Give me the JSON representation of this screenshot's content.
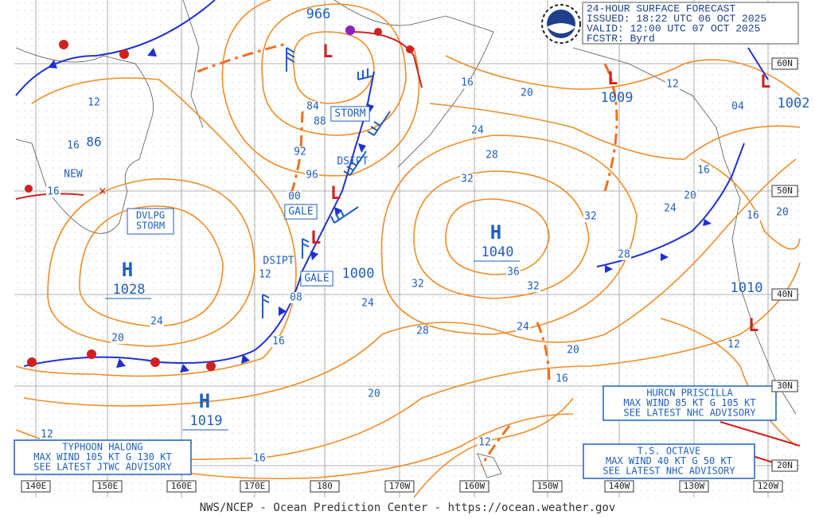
{
  "header": {
    "title": "24-HOUR SURFACE FORECAST",
    "issued": "ISSUED: 18:22 UTC 06 OCT 2025",
    "valid": "VALID:  12:00 UTC 07 OCT 2025",
    "forecaster": "FCSTR:  Byrd"
  },
  "highs": [
    {
      "symbol": "H",
      "pressure": "1028"
    },
    {
      "symbol": "H",
      "pressure": "1019"
    },
    {
      "symbol": "H",
      "pressure": "1040"
    }
  ],
  "low_pressures": [
    "966",
    "1009",
    "1002",
    "1010",
    "1000"
  ],
  "labels": [
    "86",
    "NEW",
    "STORM",
    "DSIPT",
    "GALE",
    "DSIPT",
    "GALE"
  ],
  "developing_label": [
    "DVLPG",
    "STORM"
  ],
  "isobar_labels": [
    "12",
    "16",
    "16",
    "84",
    "88",
    "92",
    "96",
    "00",
    "24",
    "20",
    "12",
    "08",
    "16",
    "16",
    "20",
    "24",
    "28",
    "32",
    "32",
    "36",
    "32",
    "32",
    "24",
    "28",
    "20",
    "24",
    "20",
    "16",
    "28",
    "24",
    "20",
    "16",
    "16",
    "20",
    "12",
    "04",
    "12",
    "16",
    "12",
    "12"
  ],
  "advisories": [
    {
      "lines": [
        "TYPHOON HALONG",
        "MAX WIND 105 KT G 130 KT",
        "SEE LATEST JTWC ADVISORY"
      ]
    },
    {
      "lines": [
        "HURCN PRISCILLA",
        "MAX WIND 85 KT G 105 KT",
        "SEE LATEST NHC ADVISORY"
      ]
    },
    {
      "lines": [
        "T.S. OCTAVE",
        "MAX WIND 40 KT G 50 KT",
        "SEE LATEST NHC ADVISORY"
      ]
    }
  ],
  "longitudes": [
    "140E",
    "150E",
    "160E",
    "170E",
    "180",
    "170W",
    "160W",
    "150W",
    "140W",
    "130W",
    "120W"
  ],
  "latitudes": [
    "60N",
    "50N",
    "40N",
    "30N",
    "20N"
  ],
  "footer": "NWS/NCEP - Ocean Prediction Center - https://ocean.weather.gov"
}
